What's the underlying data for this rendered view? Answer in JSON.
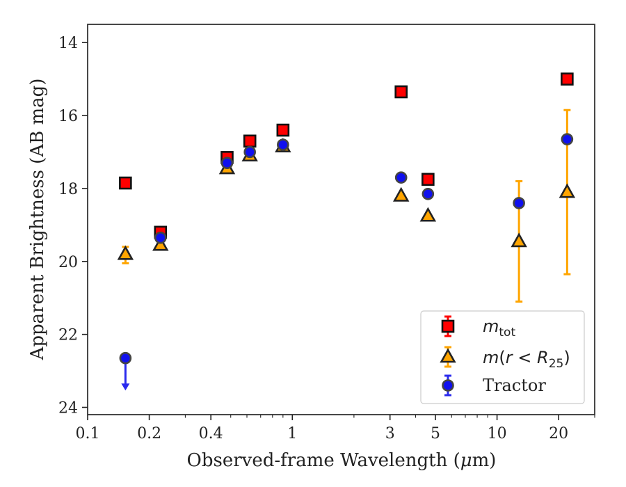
{
  "chart_data": {
    "type": "scatter",
    "title": "",
    "xlabel_prefix": "Observed-frame Wavelength (",
    "xlabel_symbol": "μ",
    "xlabel_suffix": "m)",
    "ylabel": "Apparent Brightness (AB mag)",
    "x_scale": "log",
    "xlim": [
      0.1,
      30
    ],
    "ylim": [
      24.2,
      13.5
    ],
    "y_inverted": true,
    "x_ticks": [
      {
        "value": 0.1,
        "label": "0.1"
      },
      {
        "value": 0.2,
        "label": "0.2"
      },
      {
        "value": 0.4,
        "label": "0.4"
      },
      {
        "value": 1,
        "label": "1"
      },
      {
        "value": 3,
        "label": "3"
      },
      {
        "value": 5,
        "label": "5"
      },
      {
        "value": 10,
        "label": "10"
      },
      {
        "value": 20,
        "label": "20"
      }
    ],
    "y_ticks": [
      {
        "value": 14,
        "label": "14"
      },
      {
        "value": 16,
        "label": "16"
      },
      {
        "value": 18,
        "label": "18"
      },
      {
        "value": 20,
        "label": "20"
      },
      {
        "value": 22,
        "label": "22"
      },
      {
        "value": 24,
        "label": "24"
      }
    ],
    "grid": false,
    "legend_position": "lower-right",
    "series": [
      {
        "key": "m_tot",
        "name_base": "m",
        "name_sub": "tot",
        "marker": "square",
        "color": "#ff0000",
        "edge_color": "#111111",
        "error_color": "#ff0000",
        "points": [
          {
            "x": 0.153,
            "y": 17.85
          },
          {
            "x": 0.227,
            "y": 19.2
          },
          {
            "x": 0.48,
            "y": 17.15
          },
          {
            "x": 0.62,
            "y": 16.7
          },
          {
            "x": 0.9,
            "y": 16.4
          },
          {
            "x": 3.4,
            "y": 15.35
          },
          {
            "x": 4.6,
            "y": 17.75
          },
          {
            "x": 22,
            "y": 15.0
          }
        ]
      },
      {
        "key": "m_r25",
        "name_base": "m",
        "name_paren_open": "(",
        "name_r": "r",
        "name_lt": " < ",
        "name_R": "R",
        "name_sub": "25",
        "name_paren_close": ")",
        "marker": "triangle",
        "color": "#ffa500",
        "edge_color": "#222222",
        "error_color": "#ffa500",
        "points": [
          {
            "x": 0.153,
            "y": 19.8,
            "err_low": 19.6,
            "err_high": 20.05
          },
          {
            "x": 0.227,
            "y": 19.55
          },
          {
            "x": 0.48,
            "y": 17.45
          },
          {
            "x": 0.62,
            "y": 17.1
          },
          {
            "x": 0.9,
            "y": 16.85
          },
          {
            "x": 3.4,
            "y": 18.2
          },
          {
            "x": 4.6,
            "y": 18.75
          },
          {
            "x": 12.8,
            "y": 19.45,
            "err_low": 17.8,
            "err_high": 21.1
          },
          {
            "x": 22,
            "y": 18.1,
            "err_low": 15.85,
            "err_high": 20.35
          }
        ]
      },
      {
        "key": "tractor",
        "name": "Tractor",
        "marker": "circle",
        "color": "#1010ee",
        "edge_color": "#444444",
        "error_color": "#2a2aee",
        "points": [
          {
            "x": 0.153,
            "y": 22.65,
            "upper_limit": true,
            "arrow_to": 23.5
          },
          {
            "x": 0.227,
            "y": 19.35
          },
          {
            "x": 0.48,
            "y": 17.3
          },
          {
            "x": 0.62,
            "y": 17.0
          },
          {
            "x": 0.9,
            "y": 16.8
          },
          {
            "x": 3.4,
            "y": 17.7
          },
          {
            "x": 4.6,
            "y": 18.15
          },
          {
            "x": 12.8,
            "y": 18.4
          },
          {
            "x": 22,
            "y": 16.65
          }
        ]
      }
    ]
  }
}
